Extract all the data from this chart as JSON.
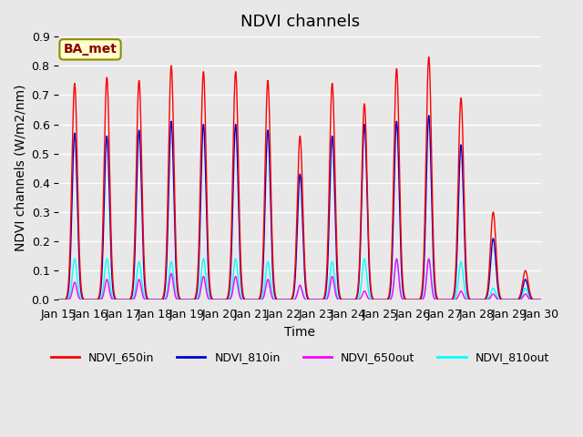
{
  "title": "NDVI channels",
  "ylabel": "NDVI channels (W/m2/nm)",
  "xlabel": "Time",
  "annotation": "BA_met",
  "ylim": [
    0.0,
    0.9
  ],
  "yticks": [
    0.0,
    0.1,
    0.2,
    0.3,
    0.4,
    0.5,
    0.6,
    0.7,
    0.8,
    0.9
  ],
  "xtick_labels": [
    "Jan 15",
    "Jan 16",
    "Jan 17",
    "Jan 18",
    "Jan 19",
    "Jan 20",
    "Jan 21",
    "Jan 22",
    "Jan 23",
    "Jan 24",
    "Jan 25",
    "Jan 26",
    "Jan 27",
    "Jan 28",
    "Jan 29",
    "Jan 30"
  ],
  "colors": {
    "NDVI_650in": "#FF0000",
    "NDVI_810in": "#0000CC",
    "NDVI_650out": "#FF00FF",
    "NDVI_810out": "#00FFFF"
  },
  "legend_labels": [
    "NDVI_650in",
    "NDVI_810in",
    "NDVI_650out",
    "NDVI_810out"
  ],
  "axes_bg_color": "#E8E8E8",
  "grid_color": "#FFFFFF",
  "title_fontsize": 13,
  "label_fontsize": 10,
  "tick_fontsize": 9,
  "num_days": 15,
  "peaks_650in": [
    0.74,
    0.76,
    0.75,
    0.8,
    0.78,
    0.78,
    0.75,
    0.56,
    0.74,
    0.67,
    0.79,
    0.83,
    0.69,
    0.3,
    0.1
  ],
  "peaks_810in": [
    0.57,
    0.56,
    0.58,
    0.61,
    0.6,
    0.6,
    0.58,
    0.43,
    0.56,
    0.6,
    0.61,
    0.63,
    0.53,
    0.21,
    0.07
  ],
  "peaks_650out": [
    0.06,
    0.07,
    0.07,
    0.09,
    0.08,
    0.08,
    0.07,
    0.05,
    0.08,
    0.03,
    0.14,
    0.14,
    0.03,
    0.02,
    0.02
  ],
  "peaks_810out": [
    0.14,
    0.14,
    0.13,
    0.13,
    0.14,
    0.14,
    0.13,
    0.05,
    0.13,
    0.14,
    0.14,
    0.14,
    0.13,
    0.04,
    0.04
  ]
}
